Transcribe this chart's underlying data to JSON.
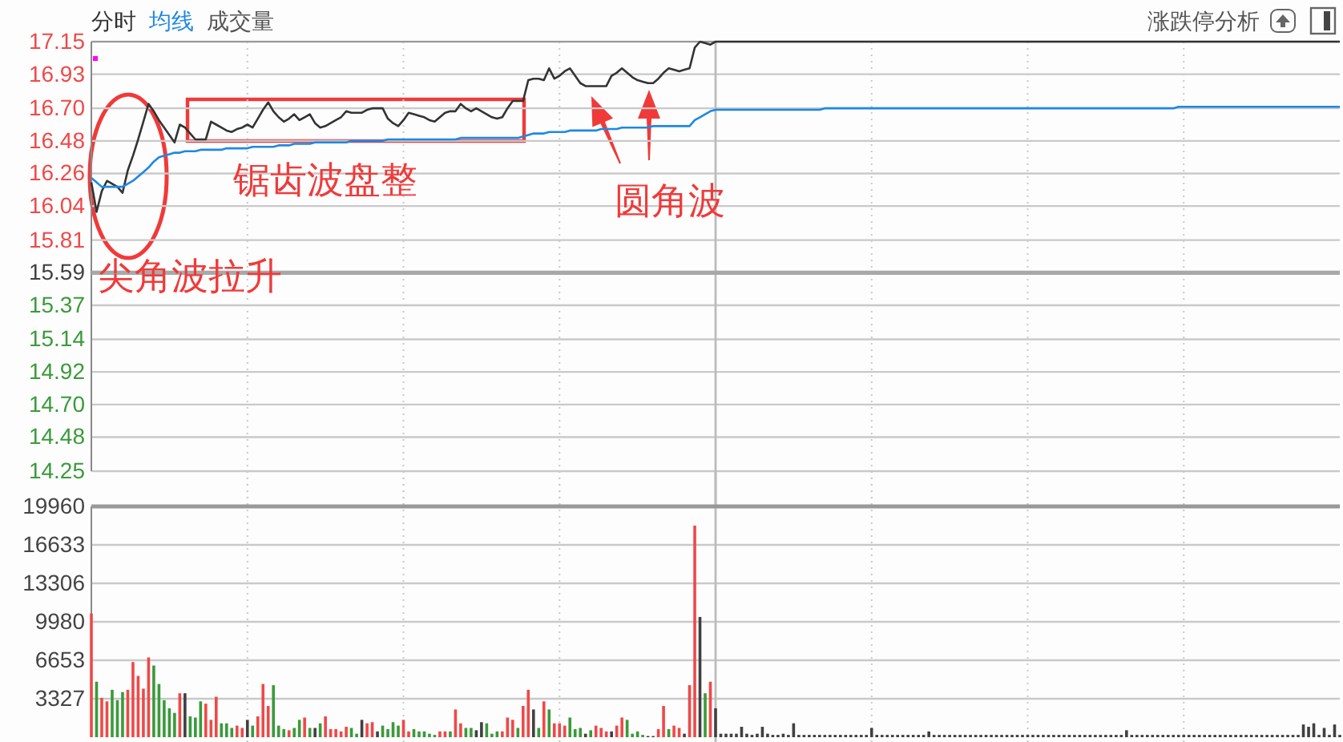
{
  "chart_data": [
    {
      "type": "line",
      "ylim": [
        14.25,
        17.15
      ],
      "yticks": [
        14.25,
        14.48,
        {
          "value": 14.7,
          "label": "14.70"
        },
        14.92,
        15.14,
        15.37,
        15.59,
        15.81,
        16.04,
        16.26,
        16.48,
        {
          "value": 16.7,
          "label": "16.70"
        },
        16.93,
        17.15
      ],
      "tick_labels": "y",
      "grid": true,
      "ref_lines": [
        {
          "axis": "y",
          "value": 15.59,
          "color": "#a8a8a8"
        }
      ],
      "annotations": [
        "尖角波拉升",
        "锯齿波盘整",
        "圆角波",
        "涨跌停分析"
      ],
      "categories": [
        null,
        null,
        null,
        null,
        null,
        null,
        null,
        null,
        null,
        null,
        null,
        null,
        null,
        null,
        null,
        null,
        null,
        null,
        null,
        null,
        null,
        null,
        null,
        null,
        null,
        null,
        null,
        null,
        null,
        null,
        null,
        null,
        null,
        null,
        null,
        null,
        null,
        null,
        null,
        null,
        null,
        null,
        null,
        null,
        null,
        null,
        null,
        null,
        null,
        null,
        null,
        null,
        null,
        null,
        null,
        null,
        null,
        null,
        null,
        null,
        null,
        null,
        null,
        null,
        null,
        null,
        null,
        null,
        null,
        null,
        null,
        null,
        null,
        null,
        null,
        null,
        null,
        null,
        null,
        null,
        null,
        null,
        null,
        null,
        null,
        null,
        null,
        null,
        null,
        null,
        null,
        null,
        null,
        null,
        null,
        null,
        null,
        null,
        null,
        null,
        null,
        null,
        null,
        null,
        null,
        null,
        null,
        null,
        null,
        null,
        null,
        null,
        null,
        null,
        null,
        null,
        null,
        null,
        null,
        null,
        null,
        null,
        null,
        null,
        null,
        null,
        null,
        null,
        null,
        null,
        null,
        null,
        null,
        null,
        null,
        null,
        null,
        null,
        null,
        null,
        null,
        null,
        null,
        null,
        null,
        null,
        null,
        null,
        null,
        null,
        null,
        null,
        null,
        null,
        null,
        null,
        null,
        null,
        null,
        null,
        null,
        null,
        null,
        null,
        null,
        null,
        null,
        null,
        null,
        null,
        null,
        null,
        null,
        null,
        null,
        null,
        null,
        null,
        null,
        null,
        null,
        null,
        null,
        null,
        null,
        null,
        null,
        null,
        null,
        null,
        null,
        null,
        null,
        null,
        null,
        null,
        null,
        null,
        null,
        null,
        null,
        null,
        null,
        null,
        null,
        null,
        null,
        null,
        null,
        null,
        null,
        null,
        null,
        null,
        null,
        null,
        null,
        null,
        null,
        null,
        null,
        null,
        null,
        null,
        null,
        null,
        null,
        null,
        null,
        null,
        null,
        null,
        null,
        null,
        null,
        null,
        null,
        null,
        null,
        null,
        null
      ],
      "series": [
        {
          "name": "分时",
          "color": "#333333",
          "values": [
            16.2,
            16.0,
            16.14,
            16.21,
            16.19,
            16.17,
            16.13,
            16.28,
            16.38,
            16.49,
            16.61,
            16.73,
            16.68,
            16.62,
            16.57,
            16.52,
            16.47,
            16.59,
            16.57,
            16.53,
            16.49,
            16.49,
            16.49,
            16.61,
            16.59,
            16.57,
            16.55,
            16.54,
            16.56,
            16.57,
            16.59,
            16.57,
            16.63,
            16.69,
            16.74,
            16.68,
            16.64,
            16.61,
            16.63,
            16.66,
            16.62,
            16.64,
            16.66,
            16.6,
            16.57,
            16.58,
            16.6,
            16.62,
            16.64,
            16.68,
            16.67,
            16.67,
            16.67,
            16.69,
            16.7,
            16.7,
            16.7,
            16.63,
            16.6,
            16.58,
            16.62,
            16.67,
            16.66,
            16.65,
            16.64,
            16.62,
            16.61,
            16.64,
            16.67,
            16.68,
            16.68,
            16.73,
            16.7,
            16.68,
            16.7,
            16.68,
            16.66,
            16.64,
            16.63,
            16.64,
            16.7,
            16.75,
            16.75,
            16.75,
            16.89,
            16.9,
            16.9,
            16.89,
            16.97,
            16.9,
            16.92,
            16.95,
            16.97,
            16.92,
            16.87,
            16.85,
            16.85,
            16.85,
            16.85,
            16.85,
            16.92,
            16.94,
            16.97,
            16.94,
            16.91,
            16.89,
            16.88,
            16.87,
            16.87,
            16.9,
            16.94,
            16.97,
            16.96,
            16.95,
            16.96,
            16.97,
            17.11,
            17.15,
            17.14,
            17.13,
            17.15,
            17.15,
            17.15,
            17.15,
            17.15,
            17.15,
            17.15,
            17.15,
            17.15,
            17.15,
            17.15,
            17.15,
            17.15,
            17.15,
            17.15,
            17.15,
            17.15,
            17.15,
            17.15,
            17.15,
            17.15,
            17.15,
            17.15,
            17.15,
            17.15,
            17.15,
            17.15,
            17.15,
            17.15,
            17.15,
            17.15,
            17.15,
            17.15,
            17.15,
            17.15,
            17.15,
            17.15,
            17.15,
            17.15,
            17.15,
            17.15,
            17.15,
            17.15,
            17.15,
            17.15,
            17.15,
            17.15,
            17.15,
            17.15,
            17.15,
            17.15,
            17.15,
            17.15,
            17.15,
            17.15,
            17.15,
            17.15,
            17.15,
            17.15,
            17.15,
            17.15,
            17.15,
            17.15,
            17.15,
            17.15,
            17.15,
            17.15,
            17.15,
            17.15,
            17.15,
            17.15,
            17.15,
            17.15,
            17.15,
            17.15,
            17.15,
            17.15,
            17.15,
            17.15,
            17.15,
            17.15,
            17.15,
            17.15,
            17.15,
            17.15,
            17.15,
            17.15,
            17.15,
            17.15,
            17.15,
            17.15,
            17.15,
            17.15,
            17.15,
            17.15,
            17.15,
            17.15,
            17.15,
            17.15,
            17.15,
            17.15,
            17.15,
            17.15,
            17.15,
            17.15,
            17.15,
            17.15,
            17.15,
            17.15,
            17.15,
            17.15,
            17.15,
            17.15,
            17.15,
            17.15,
            17.15,
            17.15,
            17.15,
            17.15,
            17.15,
            17.15
          ]
        },
        {
          "name": "均线",
          "color": "#1e88e5",
          "values": [
            16.23,
            16.2,
            16.17,
            16.17,
            16.17,
            16.17,
            16.17,
            16.19,
            16.21,
            16.24,
            16.27,
            16.3,
            16.34,
            16.37,
            16.38,
            16.39,
            16.4,
            16.4,
            16.41,
            16.41,
            16.41,
            16.42,
            16.42,
            16.42,
            16.42,
            16.42,
            16.43,
            16.43,
            16.43,
            16.43,
            16.43,
            16.44,
            16.44,
            16.44,
            16.44,
            16.44,
            16.45,
            16.45,
            16.45,
            16.46,
            16.46,
            16.46,
            16.46,
            16.47,
            16.47,
            16.47,
            16.47,
            16.47,
            16.47,
            16.47,
            16.48,
            16.48,
            16.48,
            16.48,
            16.48,
            16.48,
            16.48,
            16.49,
            16.49,
            16.49,
            16.49,
            16.49,
            16.49,
            16.49,
            16.49,
            16.49,
            16.49,
            16.49,
            16.49,
            16.49,
            16.49,
            16.5,
            16.5,
            16.5,
            16.5,
            16.5,
            16.5,
            16.5,
            16.5,
            16.5,
            16.5,
            16.5,
            16.5,
            16.51,
            16.52,
            16.53,
            16.53,
            16.53,
            16.54,
            16.54,
            16.54,
            16.54,
            16.55,
            16.55,
            16.55,
            16.55,
            16.55,
            16.55,
            16.56,
            16.56,
            16.56,
            16.56,
            16.57,
            16.57,
            16.57,
            16.57,
            16.57,
            16.57,
            16.58,
            16.58,
            16.58,
            16.58,
            16.58,
            16.58,
            16.58,
            16.58,
            16.62,
            16.64,
            16.66,
            16.68,
            16.69,
            16.69,
            16.69,
            16.69,
            16.69,
            16.69,
            16.69,
            16.69,
            16.69,
            16.69,
            16.69,
            16.69,
            16.69,
            16.69,
            16.69,
            16.69,
            16.69,
            16.69,
            16.69,
            16.69,
            16.69,
            16.7,
            16.7,
            16.7,
            16.7,
            16.7,
            16.7,
            16.7,
            16.7,
            16.7,
            16.7,
            16.7,
            16.7,
            16.7,
            16.7,
            16.7,
            16.7,
            16.7,
            16.7,
            16.7,
            16.7,
            16.7,
            16.7,
            16.7,
            16.7,
            16.7,
            16.7,
            16.7,
            16.7,
            16.7,
            16.7,
            16.7,
            16.7,
            16.7,
            16.7,
            16.7,
            16.7,
            16.7,
            16.7,
            16.7,
            16.7,
            16.7,
            16.7,
            16.7,
            16.7,
            16.7,
            16.7,
            16.7,
            16.7,
            16.7,
            16.7,
            16.7,
            16.7,
            16.7,
            16.7,
            16.7,
            16.7,
            16.7,
            16.7,
            16.7,
            16.7,
            16.7,
            16.7,
            16.7,
            16.7,
            16.7,
            16.7,
            16.7,
            16.7,
            16.71,
            16.71,
            16.71,
            16.71,
            16.71,
            16.71,
            16.71,
            16.71,
            16.71,
            16.71,
            16.71,
            16.71,
            16.71,
            16.71,
            16.71,
            16.71,
            16.71,
            16.71,
            16.71,
            16.71,
            16.71,
            16.71,
            16.71,
            16.71,
            16.71,
            16.71,
            16.71,
            16.71,
            16.71,
            16.71,
            16.71,
            16.71
          ]
        }
      ]
    },
    {
      "type": "bar",
      "ylim": [
        0,
        19960
      ],
      "yticks": [
        3327,
        6653,
        9980,
        13306,
        16633,
        19960
      ],
      "tick_labels": "y",
      "grid": true,
      "categories": [
        null,
        null,
        null,
        null,
        null,
        null,
        null,
        null,
        null,
        null,
        null,
        null,
        null,
        null,
        null,
        null,
        null,
        null,
        null,
        null,
        null,
        null,
        null,
        null,
        null,
        null,
        null,
        null,
        null,
        null,
        null,
        null,
        null,
        null,
        null,
        null,
        null,
        null,
        null,
        null,
        null,
        null,
        null,
        null,
        null,
        null,
        null,
        null,
        null,
        null,
        null,
        null,
        null,
        null,
        null,
        null,
        null,
        null,
        null,
        null,
        null,
        null,
        null,
        null,
        null,
        null,
        null,
        null,
        null,
        null,
        null,
        null,
        null,
        null,
        null,
        null,
        null,
        null,
        null,
        null,
        null,
        null,
        null,
        null,
        null,
        null,
        null,
        null,
        null,
        null,
        null,
        null,
        null,
        null,
        null,
        null,
        null,
        null,
        null,
        null,
        null,
        null,
        null,
        null,
        null,
        null,
        null,
        null,
        null,
        null,
        null,
        null,
        null,
        null,
        null,
        null,
        null,
        null,
        null,
        null,
        null,
        null,
        null,
        null,
        null,
        null,
        null,
        null,
        null,
        null,
        null,
        null,
        null,
        null,
        null,
        null,
        null,
        null,
        null,
        null,
        null,
        null,
        null,
        null,
        null,
        null,
        null,
        null,
        null,
        null,
        null,
        null,
        null,
        null,
        null,
        null,
        null,
        null,
        null,
        null,
        null,
        null,
        null,
        null,
        null,
        null,
        null,
        null,
        null,
        null,
        null,
        null,
        null,
        null,
        null,
        null,
        null,
        null,
        null,
        null,
        null,
        null,
        null,
        null,
        null,
        null,
        null,
        null,
        null,
        null,
        null,
        null,
        null,
        null,
        null,
        null,
        null,
        null,
        null,
        null,
        null,
        null,
        null,
        null,
        null,
        null,
        null,
        null,
        null,
        null,
        null,
        null,
        null,
        null,
        null,
        null,
        null,
        null,
        null,
        null,
        null,
        null,
        null,
        null,
        null,
        null,
        null,
        null,
        null,
        null,
        null,
        null,
        null,
        null,
        null,
        null,
        null,
        null,
        null,
        null,
        null
      ],
      "series": [
        {
          "name": "成交量",
          "color": "#555555",
          "values": [
            10700,
            4800,
            3400,
            3100,
            4100,
            3200,
            3900,
            4100,
            6500,
            5300,
            4200,
            6900,
            6200,
            4600,
            3200,
            2500,
            2100,
            3800,
            3800,
            1800,
            1700,
            3100,
            2900,
            1500,
            3500,
            1200,
            1200,
            800,
            1000,
            800,
            1500,
            1000,
            1800,
            4600,
            2700,
            4500,
            1000,
            700,
            600,
            800,
            1500,
            1700,
            800,
            800,
            1200,
            1800,
            700,
            700,
            500,
            900,
            800,
            300,
            1500,
            1200,
            1300,
            500,
            1000,
            700,
            1300,
            1000,
            1500,
            500,
            700,
            500,
            500,
            300,
            200,
            500,
            500,
            500,
            2400,
            1200,
            800,
            800,
            600,
            1300,
            1200,
            300,
            500,
            500,
            1700,
            1500,
            800,
            2700,
            4100,
            2400,
            800,
            3100,
            2400,
            1200,
            1200,
            1000,
            1700,
            700,
            800,
            300,
            600,
            1000,
            800,
            500,
            500,
            1000,
            1700,
            1500,
            300,
            500,
            200,
            100,
            100,
            700,
            2700,
            700,
            1000,
            800,
            300,
            4500,
            18300,
            10400,
            3800,
            4800,
            2500,
            300,
            300,
            300,
            300,
            900,
            300,
            200,
            300,
            900,
            300,
            200,
            200,
            300,
            200,
            1200,
            200,
            200,
            200,
            200,
            200,
            200,
            200,
            200,
            200,
            200,
            200,
            200,
            200,
            200,
            800,
            200,
            200,
            200,
            200,
            200,
            200,
            200,
            200,
            200,
            200,
            500,
            200,
            200,
            200,
            200,
            200,
            200,
            200,
            200,
            200,
            200,
            200,
            200,
            200,
            200,
            200,
            200,
            200,
            200,
            200,
            200,
            200,
            200,
            200,
            200,
            200,
            200,
            200,
            200,
            200,
            200,
            200,
            200,
            200,
            200,
            200,
            200,
            200,
            600,
            200,
            200,
            200,
            200,
            200,
            200,
            200,
            200,
            200,
            200,
            200,
            200,
            200,
            200,
            200,
            200,
            200,
            200,
            200,
            200,
            200,
            200,
            200,
            200,
            200,
            200,
            200,
            200,
            200,
            200,
            200,
            200,
            200,
            1100,
            900,
            1200,
            200,
            800,
            200,
            1100,
            200
          ],
          "colors": [
            "#f04848",
            "#3a9a3a",
            "#f04848",
            "#f04848",
            "#3a9a3a",
            "#3a9a3a",
            "#3a9a3a",
            "#f04848",
            "#f04848",
            "#f04848",
            "#f04848",
            "#f04848",
            "#3a9a3a",
            "#3a9a3a",
            "#3a9a3a",
            "#3a9a3a",
            "#3a9a3a",
            "#f04848",
            "#404040",
            "#3a9a3a",
            "#3a9a3a",
            "#3a9a3a",
            "#f04848",
            "#f04848",
            "#f04848",
            "#3a9a3a",
            "#3a9a3a",
            "#3a9a3a",
            "#f04848",
            "#f04848",
            "#404040",
            "#3a9a3a",
            "#f04848",
            "#f04848",
            "#f04848",
            "#3a9a3a",
            "#3a9a3a",
            "#3a9a3a",
            "#f04848",
            "#3a9a3a",
            "#3a9a3a",
            "#f04848",
            "#3a9a3a",
            "#404040",
            "#3a9a3a",
            "#f04848",
            "#f04848",
            "#f04848",
            "#f04848",
            "#f04848",
            "#3a9a3a",
            "#3a9a3a",
            "#404040",
            "#f04848",
            "#f04848",
            "#404040",
            "#3a9a3a",
            "#3a9a3a",
            "#3a9a3a",
            "#3a9a3a",
            "#f04848",
            "#f04848",
            "#3a9a3a",
            "#3a9a3a",
            "#3a9a3a",
            "#3a9a3a",
            "#3a9a3a",
            "#f04848",
            "#f04848",
            "#3a9a3a",
            "#f04848",
            "#f04848",
            "#3a9a3a",
            "#3a9a3a",
            "#404040",
            "#404040",
            "#3a9a3a",
            "#3a9a3a",
            "#3a9a3a",
            "#f04848",
            "#f04848",
            "#f04848",
            "#3a9a3a",
            "#f04848",
            "#f04848",
            "#404040",
            "#3a9a3a",
            "#f04848",
            "#3a9a3a",
            "#f04848",
            "#f04848",
            "#f04848",
            "#3a9a3a",
            "#3a9a3a",
            "#3a9a3a",
            "#404040",
            "#3a9a3a",
            "#f04848",
            "#f04848",
            "#f04848",
            "#404040",
            "#f04848",
            "#f04848",
            "#3a9a3a",
            "#3a9a3a",
            "#3a9a3a",
            "#3a9a3a",
            "#404040",
            "#404040",
            "#f04848",
            "#f04848",
            "#3a9a3a",
            "#f04848",
            "#f04848",
            "#404040",
            "#f04848",
            "#f04848",
            "#404040",
            "#3a9a3a",
            "#f04848",
            "#404040",
            "#404040",
            "#404040",
            "#404040",
            "#404040",
            "#404040",
            "#404040",
            "#404040",
            "#404040",
            "#404040",
            "#404040",
            "#404040",
            "#404040",
            "#404040",
            "#404040",
            "#404040",
            "#404040",
            "#404040",
            "#404040",
            "#404040",
            "#404040",
            "#404040",
            "#404040",
            "#404040",
            "#404040",
            "#404040",
            "#404040",
            "#404040",
            "#404040",
            "#404040",
            "#404040",
            "#404040",
            "#404040",
            "#404040",
            "#404040",
            "#404040",
            "#404040",
            "#404040",
            "#404040",
            "#404040",
            "#404040",
            "#404040",
            "#404040",
            "#404040",
            "#404040",
            "#404040",
            "#404040",
            "#404040",
            "#404040",
            "#404040",
            "#404040",
            "#404040",
            "#404040",
            "#404040",
            "#404040",
            "#404040",
            "#404040",
            "#404040",
            "#404040",
            "#404040",
            "#404040",
            "#404040",
            "#404040",
            "#404040",
            "#404040",
            "#404040",
            "#404040",
            "#404040",
            "#404040",
            "#404040",
            "#404040",
            "#404040",
            "#404040",
            "#404040",
            "#404040",
            "#404040",
            "#404040",
            "#404040",
            "#404040",
            "#404040",
            "#404040",
            "#404040",
            "#404040",
            "#404040",
            "#404040",
            "#404040",
            "#404040",
            "#404040",
            "#404040",
            "#404040",
            "#404040",
            "#404040",
            "#404040",
            "#404040",
            "#404040",
            "#404040",
            "#404040",
            "#404040",
            "#404040",
            "#404040",
            "#404040",
            "#404040",
            "#404040",
            "#404040",
            "#404040",
            "#404040",
            "#404040",
            "#404040",
            "#404040",
            "#404040",
            "#404040",
            "#404040",
            "#404040",
            "#404040",
            "#404040",
            "#404040",
            "#404040",
            "#404040",
            "#404040",
            "#404040",
            "#404040"
          ]
        }
      ]
    }
  ]
}
